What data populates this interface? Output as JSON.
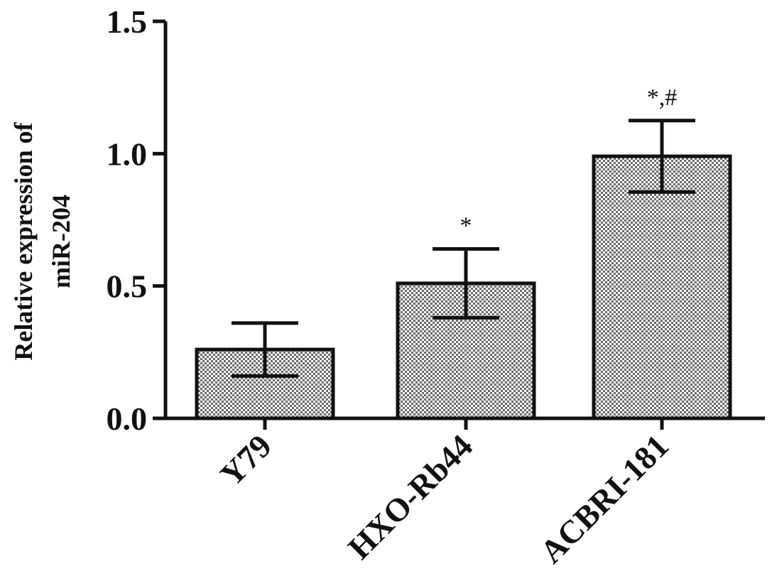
{
  "chart_data": {
    "type": "bar",
    "title": "",
    "xlabel": "",
    "ylabel": [
      "Relative expression of",
      "miR-204"
    ],
    "categories": [
      "Y79",
      "HXO-Rb44",
      "ACBRI-181"
    ],
    "values": [
      0.26,
      0.51,
      0.99
    ],
    "errors": [
      0.1,
      0.13,
      0.135
    ],
    "annotations": [
      "",
      "*",
      "*,#"
    ],
    "ylim": [
      0,
      1.5
    ],
    "yticks": [
      "0.0",
      "0.5",
      "1.0",
      "1.5"
    ],
    "grid": false,
    "bar_fill": "checkered",
    "colors": {
      "bar_stroke": "#111111",
      "check_dark": "#6b6b6b",
      "check_light": "#ffffff"
    }
  }
}
